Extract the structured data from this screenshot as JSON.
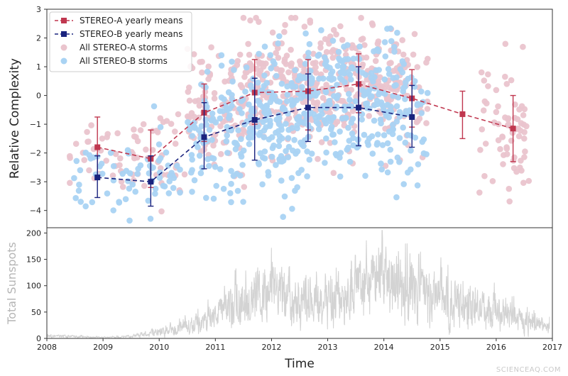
{
  "chart_data": [
    {
      "type": "scatter",
      "xlabel": "",
      "ylabel": "Relative Complexity",
      "xlim": [
        2008,
        2017
      ],
      "ylim": [
        -4.6,
        3.0
      ],
      "yticks": [
        -4,
        -3,
        -2,
        -1,
        0,
        1,
        2,
        3
      ],
      "grid": false,
      "legend_position": "top-left",
      "legend": [
        {
          "label": "STEREO-A yearly means",
          "series": "stereo_a_means"
        },
        {
          "label": "STEREO-B yearly means",
          "series": "stereo_b_means"
        },
        {
          "label": "All STEREO-A storms",
          "series": "stereo_a_storms"
        },
        {
          "label": "All STEREO-B storms",
          "series": "stereo_b_storms"
        }
      ],
      "series": {
        "stereo_a_means": {
          "name": "STEREO-A yearly means",
          "color": "#c0374f",
          "style": "dashed-line-square-markers-errorbars",
          "x": [
            2008.9,
            2009.85,
            2010.8,
            2011.7,
            2012.65,
            2013.55,
            2014.5,
            2015.4,
            2016.3
          ],
          "y": [
            -1.8,
            -2.2,
            -0.6,
            0.1,
            0.15,
            0.4,
            -0.1,
            -0.65,
            -1.15
          ],
          "err_low": [
            -2.9,
            -3.2,
            -1.6,
            -1.0,
            -1.2,
            -0.6,
            -1.1,
            -1.5,
            -2.3
          ],
          "err_high": [
            -0.75,
            -1.2,
            0.4,
            1.25,
            1.25,
            1.45,
            0.9,
            0.15,
            0.0
          ]
        },
        "stereo_b_means": {
          "name": "STEREO-B yearly means",
          "color": "#1a237e",
          "style": "dashed-line-square-markers-errorbars",
          "x": [
            2008.9,
            2009.85,
            2010.8,
            2011.7,
            2012.65,
            2013.55,
            2014.5
          ],
          "y": [
            -2.85,
            -3.0,
            -1.45,
            -0.85,
            -0.42,
            -0.42,
            -0.75
          ],
          "err_low": [
            -3.55,
            -3.85,
            -2.55,
            -2.25,
            -1.6,
            -1.75,
            -1.8
          ],
          "err_high": [
            -2.1,
            -2.1,
            -0.25,
            0.6,
            0.75,
            1.0,
            0.35
          ]
        },
        "stereo_a_storms": {
          "name": "All STEREO-A storms",
          "color": "#eac4cd",
          "style": "scatter",
          "clusters": [
            {
              "x_range": [
                2008.4,
                2009.8
              ],
              "y_mean": -1.9,
              "y_sd": 0.7,
              "count": 45
            },
            {
              "x_range": [
                2009.8,
                2010.5
              ],
              "y_mean": -2.1,
              "y_sd": 0.8,
              "count": 25
            },
            {
              "x_range": [
                2010.5,
                2011.5
              ],
              "y_mean": -0.5,
              "y_sd": 1.0,
              "count": 100
            },
            {
              "x_range": [
                2011.5,
                2012.5
              ],
              "y_mean": 0.3,
              "y_sd": 1.0,
              "count": 140
            },
            {
              "x_range": [
                2012.5,
                2013.5
              ],
              "y_mean": 0.2,
              "y_sd": 1.0,
              "count": 150
            },
            {
              "x_range": [
                2013.5,
                2014.4
              ],
              "y_mean": 0.4,
              "y_sd": 1.0,
              "count": 110
            },
            {
              "x_range": [
                2014.4,
                2014.8
              ],
              "y_mean": 0.0,
              "y_sd": 0.9,
              "count": 25
            },
            {
              "x_range": [
                2015.7,
                2016.6
              ],
              "y_mean": -1.2,
              "y_sd": 1.2,
              "count": 70
            }
          ]
        },
        "stereo_b_storms": {
          "name": "All STEREO-B storms",
          "color": "#a9d3f3",
          "style": "scatter",
          "clusters": [
            {
              "x_range": [
                2008.45,
                2009.8
              ],
              "y_mean": -2.9,
              "y_sd": 0.6,
              "count": 40
            },
            {
              "x_range": [
                2009.8,
                2010.4
              ],
              "y_mean": -2.9,
              "y_sd": 0.8,
              "count": 30
            },
            {
              "x_range": [
                2010.5,
                2011.5
              ],
              "y_mean": -1.4,
              "y_sd": 1.1,
              "count": 100
            },
            {
              "x_range": [
                2011.5,
                2012.5
              ],
              "y_mean": -0.8,
              "y_sd": 1.2,
              "count": 150
            },
            {
              "x_range": [
                2012.5,
                2013.5
              ],
              "y_mean": -0.4,
              "y_sd": 1.2,
              "count": 160
            },
            {
              "x_range": [
                2013.5,
                2014.4
              ],
              "y_mean": -0.4,
              "y_sd": 1.2,
              "count": 120
            },
            {
              "x_range": [
                2014.4,
                2014.8
              ],
              "y_mean": -0.8,
              "y_sd": 1.1,
              "count": 25
            }
          ]
        }
      }
    },
    {
      "type": "line",
      "xlabel": "Time",
      "ylabel": "Total Sunspots",
      "xlim": [
        2008,
        2017
      ],
      "ylim": [
        0,
        210
      ],
      "xticks": [
        "2008",
        "2009",
        "2010",
        "2011",
        "2012",
        "2013",
        "2014",
        "2015",
        "2016",
        "2017"
      ],
      "yticks": [
        0,
        50,
        100,
        150,
        200
      ],
      "grid": false,
      "series": [
        {
          "name": "",
          "color": "#d3d3d3",
          "style": "daily-noisy-line",
          "x": [
            2008.0,
            2008.5,
            2009.0,
            2009.5,
            2010.0,
            2010.5,
            2011.0,
            2011.5,
            2012.0,
            2012.5,
            2013.0,
            2013.5,
            2014.0,
            2014.5,
            2015.0,
            2015.5,
            2016.0,
            2016.5,
            2016.95
          ],
          "y": [
            5,
            4,
            2,
            4,
            12,
            25,
            45,
            80,
            95,
            80,
            75,
            100,
            120,
            105,
            80,
            65,
            55,
            35,
            25
          ],
          "peak_max": 205
        }
      ]
    }
  ],
  "watermark": "SCIENCEAQ.COM"
}
